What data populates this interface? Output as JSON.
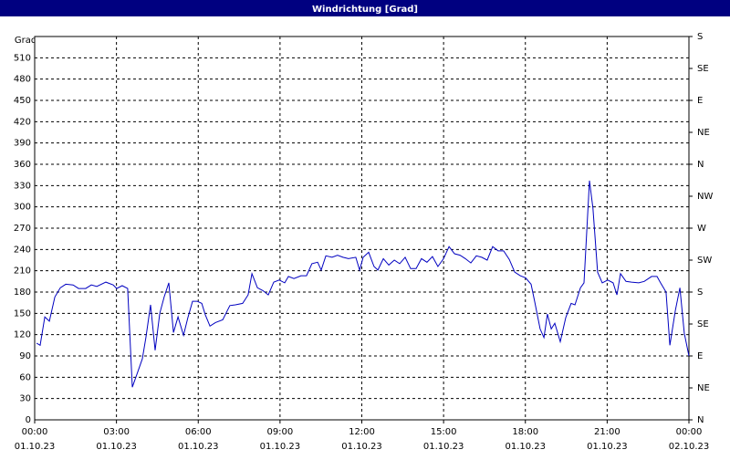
{
  "chart_data": {
    "type": "line",
    "title": "Windrichtung [Grad]",
    "y_label": "Grad",
    "color": "#0000c0",
    "grid": true,
    "line_style": "dashed grid",
    "xlim": [
      0,
      24
    ],
    "ylim": [
      0,
      540
    ],
    "y2lim": [
      0,
      540
    ],
    "xticks": [
      {
        "value": 0,
        "label": "00:00",
        "sublabel": "01.10.23"
      },
      {
        "value": 3,
        "label": "03:00",
        "sublabel": "01.10.23"
      },
      {
        "value": 6,
        "label": "06:00",
        "sublabel": "01.10.23"
      },
      {
        "value": 9,
        "label": "09:00",
        "sublabel": "01.10.23"
      },
      {
        "value": 12,
        "label": "12:00",
        "sublabel": "01.10.23"
      },
      {
        "value": 15,
        "label": "15:00",
        "sublabel": "01.10.23"
      },
      {
        "value": 18,
        "label": "18:00",
        "sublabel": "01.10.23"
      },
      {
        "value": 21,
        "label": "21:00",
        "sublabel": "01.10.23"
      },
      {
        "value": 24,
        "label": "00:00",
        "sublabel": "02.10.23"
      }
    ],
    "yticks": [
      0,
      30,
      60,
      90,
      120,
      150,
      180,
      210,
      240,
      270,
      300,
      330,
      360,
      390,
      420,
      450,
      480,
      510
    ],
    "y2ticks": [
      {
        "value": 0,
        "label": "N"
      },
      {
        "value": 45,
        "label": "NE"
      },
      {
        "value": 90,
        "label": "E"
      },
      {
        "value": 135,
        "label": "SE"
      },
      {
        "value": 180,
        "label": "S"
      },
      {
        "value": 225,
        "label": "SW"
      },
      {
        "value": 270,
        "label": "W"
      },
      {
        "value": 315,
        "label": "NW"
      },
      {
        "value": 360,
        "label": "N"
      },
      {
        "value": 405,
        "label": "NE"
      },
      {
        "value": 450,
        "label": "E"
      },
      {
        "value": 495,
        "label": "SE"
      },
      {
        "value": 540,
        "label": "S"
      }
    ],
    "x": [
      0.07,
      0.2,
      0.37,
      0.54,
      0.74,
      0.94,
      1.14,
      1.41,
      1.61,
      1.87,
      2.08,
      2.28,
      2.61,
      2.88,
      3.01,
      3.21,
      3.41,
      3.58,
      3.75,
      3.95,
      4.08,
      4.25,
      4.42,
      4.59,
      4.75,
      4.92,
      5.09,
      5.26,
      5.46,
      5.62,
      5.79,
      5.96,
      6.13,
      6.26,
      6.43,
      6.63,
      6.9,
      7.16,
      7.36,
      7.63,
      7.83,
      7.97,
      8.17,
      8.37,
      8.57,
      8.77,
      8.97,
      9.17,
      9.31,
      9.51,
      9.77,
      9.97,
      10.17,
      10.38,
      10.51,
      10.68,
      10.91,
      11.11,
      11.31,
      11.51,
      11.78,
      11.92,
      12.05,
      12.25,
      12.45,
      12.59,
      12.79,
      12.99,
      13.19,
      13.39,
      13.59,
      13.79,
      13.99,
      14.19,
      14.39,
      14.59,
      14.79,
      15.0,
      15.2,
      15.4,
      15.6,
      15.8,
      16.0,
      16.2,
      16.4,
      16.6,
      16.8,
      17.0,
      17.2,
      17.41,
      17.61,
      17.81,
      18.01,
      18.21,
      18.34,
      18.54,
      18.68,
      18.81,
      18.95,
      19.08,
      19.28,
      19.48,
      19.68,
      19.82,
      20.02,
      20.15,
      20.35,
      20.48,
      20.65,
      20.82,
      21.02,
      21.22,
      21.36,
      21.49,
      21.69,
      21.89,
      22.16,
      22.36,
      22.63,
      22.83,
      22.96,
      23.16,
      23.3,
      23.5,
      23.67,
      23.83,
      24.0
    ],
    "values": [
      108,
      105,
      145,
      139,
      173,
      186,
      191,
      190,
      185,
      185,
      190,
      188,
      194,
      190,
      185,
      189,
      185,
      46,
      64,
      86,
      116,
      162,
      98,
      150,
      173,
      193,
      123,
      145,
      119,
      144,
      167,
      167,
      164,
      148,
      132,
      137,
      141,
      161,
      162,
      164,
      176,
      206,
      186,
      182,
      176,
      194,
      197,
      193,
      202,
      199,
      203,
      203,
      220,
      222,
      211,
      231,
      229,
      232,
      229,
      227,
      229,
      211,
      229,
      236,
      216,
      211,
      227,
      218,
      225,
      220,
      229,
      213,
      213,
      227,
      222,
      230,
      216,
      227,
      244,
      234,
      232,
      227,
      221,
      231,
      229,
      225,
      244,
      238,
      238,
      226,
      208,
      203,
      200,
      191,
      167,
      128,
      116,
      149,
      128,
      136,
      110,
      144,
      164,
      162,
      186,
      193,
      337,
      298,
      208,
      193,
      197,
      193,
      176,
      206,
      195,
      194,
      193,
      195,
      202,
      202,
      193,
      180,
      105,
      154,
      186,
      122,
      90
    ]
  }
}
